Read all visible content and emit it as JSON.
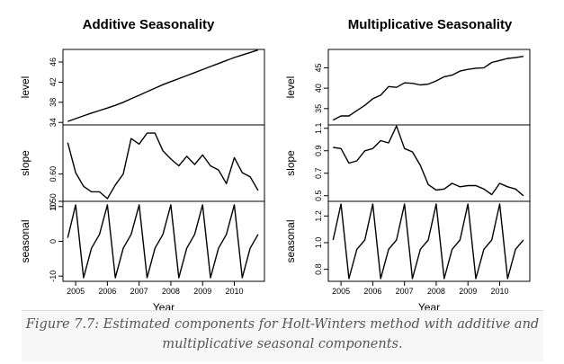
{
  "figure": {
    "caption_line1": "Figure 7.7: Estimated components for Holt-Winters method with additive and",
    "caption_line2": "multiplicative seasonal components."
  },
  "chart_data": [
    {
      "type": "line",
      "title": "Additive  Seasonality",
      "xlabel": "Year",
      "xticks": [
        2005,
        2006,
        2007,
        2008,
        2009,
        2010
      ],
      "xlim": [
        2004.6,
        2010.95
      ],
      "panels": [
        {
          "ylabel": "level",
          "ylim": [
            33.5,
            48.5
          ],
          "yticks": [
            34,
            38,
            42,
            46
          ],
          "x": [
            2004.75,
            2005.0,
            2005.25,
            2005.5,
            2005.75,
            2006.0,
            2006.25,
            2006.5,
            2006.75,
            2007.0,
            2007.25,
            2007.5,
            2007.75,
            2008.0,
            2008.25,
            2008.5,
            2008.75,
            2009.0,
            2009.25,
            2009.5,
            2009.75,
            2010.0,
            2010.25,
            2010.5,
            2010.75
          ],
          "values": [
            34.2,
            34.75,
            35.3,
            35.85,
            36.35,
            36.85,
            37.4,
            38.0,
            38.7,
            39.4,
            40.1,
            40.8,
            41.5,
            42.1,
            42.7,
            43.3,
            43.9,
            44.5,
            45.1,
            45.7,
            46.3,
            46.9,
            47.4,
            47.9,
            48.4
          ]
        },
        {
          "ylabel": "slope",
          "ylim": [
            0.5,
            0.78
          ],
          "yticks": [
            0.5,
            0.6
          ],
          "ytick_labels": [
            "0.50",
            "0.60"
          ],
          "x": [
            2004.75,
            2005.0,
            2005.25,
            2005.5,
            2005.75,
            2006.0,
            2006.25,
            2006.5,
            2006.75,
            2007.0,
            2007.25,
            2007.5,
            2007.75,
            2008.0,
            2008.25,
            2008.5,
            2008.75,
            2009.0,
            2009.25,
            2009.5,
            2009.75,
            2010.0,
            2010.25,
            2010.5,
            2010.75
          ],
          "values": [
            0.715,
            0.605,
            0.555,
            0.535,
            0.535,
            0.51,
            0.56,
            0.6,
            0.73,
            0.71,
            0.75,
            0.75,
            0.685,
            0.655,
            0.63,
            0.665,
            0.635,
            0.67,
            0.63,
            0.615,
            0.565,
            0.66,
            0.605,
            0.59,
            0.54
          ]
        },
        {
          "ylabel": "seasonal",
          "ylim": [
            -11.5,
            11.5
          ],
          "yticks": [
            -10,
            0,
            10
          ],
          "x": [
            2004.75,
            2005.0,
            2005.25,
            2005.5,
            2005.75,
            2006.0,
            2006.25,
            2006.5,
            2006.75,
            2007.0,
            2007.25,
            2007.5,
            2007.75,
            2008.0,
            2008.25,
            2008.5,
            2008.75,
            2009.0,
            2009.25,
            2009.5,
            2009.75,
            2010.0,
            2010.25,
            2010.5,
            2010.75
          ],
          "values": [
            1,
            10.5,
            -10.5,
            -2,
            2,
            10.5,
            -10.5,
            -2,
            2,
            10.5,
            -10.5,
            -2,
            2,
            10.5,
            -10.5,
            -2,
            2,
            10.5,
            -10.5,
            -2,
            2,
            10.5,
            -10.5,
            -2,
            2
          ]
        }
      ]
    },
    {
      "type": "line",
      "title": "Multiplicative  Seasonality",
      "xlabel": "Year",
      "xticks": [
        2005,
        2006,
        2007,
        2008,
        2009,
        2010
      ],
      "xlim": [
        2004.6,
        2010.95
      ],
      "panels": [
        {
          "ylabel": "level",
          "ylim": [
            31.0,
            49.5
          ],
          "yticks": [
            35,
            40,
            45
          ],
          "x": [
            2004.75,
            2005.0,
            2005.25,
            2005.5,
            2005.75,
            2006.0,
            2006.25,
            2006.5,
            2006.75,
            2007.0,
            2007.25,
            2007.5,
            2007.75,
            2008.0,
            2008.25,
            2008.5,
            2008.75,
            2009.0,
            2009.25,
            2009.5,
            2009.75,
            2010.0,
            2010.25,
            2010.5,
            2010.75
          ],
          "values": [
            32.2,
            33.2,
            33.2,
            34.5,
            35.8,
            37.4,
            38.3,
            40.4,
            40.2,
            41.3,
            41.2,
            40.8,
            41.0,
            41.8,
            42.8,
            43.2,
            44.2,
            44.6,
            44.9,
            45.0,
            46.3,
            46.8,
            47.3,
            47.5,
            47.8
          ]
        },
        {
          "ylabel": "slope",
          "ylim": [
            0.45,
            1.13
          ],
          "yticks": [
            0.5,
            0.7,
            0.9,
            1.1
          ],
          "ytick_labels": [
            "0.5",
            "0.7",
            "0.9",
            "1.1"
          ],
          "x": [
            2004.75,
            2005.0,
            2005.25,
            2005.5,
            2005.75,
            2006.0,
            2006.25,
            2006.5,
            2006.75,
            2007.0,
            2007.25,
            2007.5,
            2007.75,
            2008.0,
            2008.25,
            2008.5,
            2008.75,
            2009.0,
            2009.25,
            2009.5,
            2009.75,
            2010.0,
            2010.25,
            2010.5,
            2010.75
          ],
          "values": [
            0.93,
            0.92,
            0.79,
            0.81,
            0.9,
            0.92,
            0.99,
            0.97,
            1.12,
            0.92,
            0.89,
            0.77,
            0.6,
            0.55,
            0.56,
            0.61,
            0.58,
            0.59,
            0.59,
            0.56,
            0.51,
            0.61,
            0.58,
            0.56,
            0.5
          ]
        },
        {
          "ylabel": "seasonal",
          "ylim": [
            0.71,
            1.31
          ],
          "yticks": [
            0.8,
            1.0,
            1.2
          ],
          "ytick_labels": [
            "0.8",
            "1.0",
            "1.2"
          ],
          "x": [
            2004.75,
            2005.0,
            2005.25,
            2005.5,
            2005.75,
            2006.0,
            2006.25,
            2006.5,
            2006.75,
            2007.0,
            2007.25,
            2007.5,
            2007.75,
            2008.0,
            2008.25,
            2008.5,
            2008.75,
            2009.0,
            2009.25,
            2009.5,
            2009.75,
            2010.0,
            2010.25,
            2010.5,
            2010.75
          ],
          "values": [
            1.02,
            1.29,
            0.73,
            0.95,
            1.02,
            1.29,
            0.73,
            0.95,
            1.02,
            1.29,
            0.73,
            0.95,
            1.02,
            1.29,
            0.73,
            0.95,
            1.02,
            1.29,
            0.73,
            0.95,
            1.02,
            1.29,
            0.73,
            0.95,
            1.02
          ]
        }
      ]
    }
  ]
}
